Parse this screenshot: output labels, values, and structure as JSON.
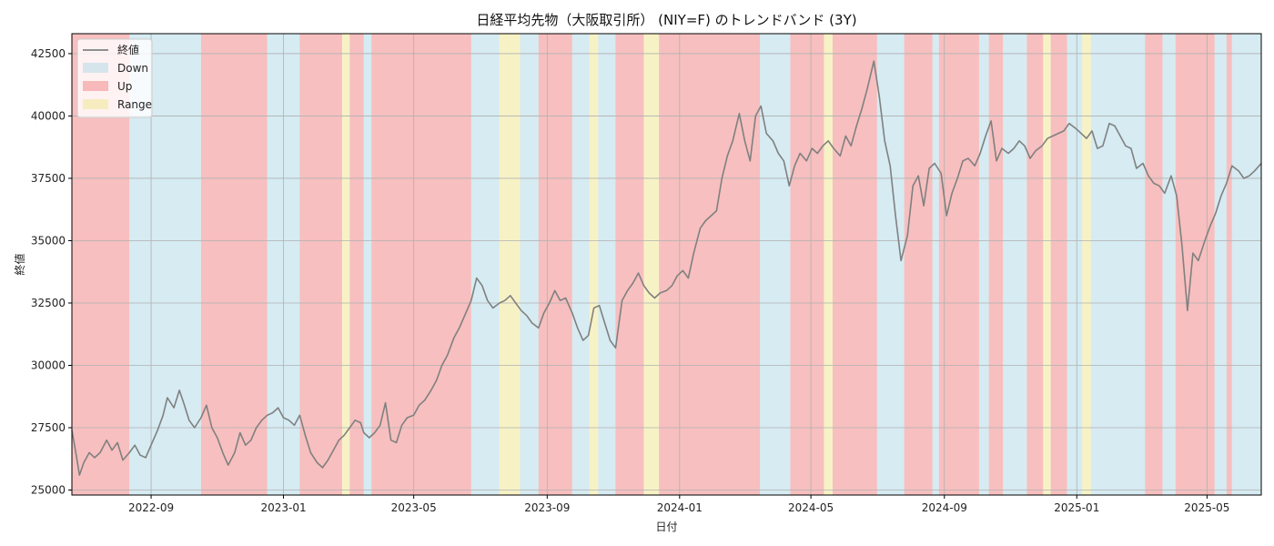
{
  "chart_data": {
    "type": "line",
    "title": "日経平均先物（大阪取引所） (NIY=F) のトレンドバンド (3Y)",
    "xlabel": "日付",
    "ylabel": "終値",
    "x_tick_labels": [
      "2022-09",
      "2023-01",
      "2023-05",
      "2023-09",
      "2024-01",
      "2024-05",
      "2024-09",
      "2025-01",
      "2025-05"
    ],
    "x_ticks": [
      "2022-09-01",
      "2023-01-01",
      "2023-05-01",
      "2023-09-01",
      "2024-01-01",
      "2024-05-01",
      "2024-09-01",
      "2025-01-01",
      "2025-05-01"
    ],
    "xlim": [
      "2022-06-20",
      "2025-06-20"
    ],
    "y_ticks": [
      25000,
      27500,
      30000,
      32500,
      35000,
      37500,
      40000,
      42500
    ],
    "y_tick_labels": [
      "25000",
      "27500",
      "30000",
      "32500",
      "35000",
      "37500",
      "40000",
      "42500"
    ],
    "ylim": [
      24800,
      43300
    ],
    "grid": true,
    "legend_position": "top-left",
    "colors": {
      "line": "#808080",
      "Down": "#add8e6",
      "Up": "#f08080",
      "Range": "#f0e68c"
    },
    "legend": [
      {
        "label": "終値",
        "kind": "line",
        "color": "#808080"
      },
      {
        "label": "Down",
        "kind": "band",
        "color": "#add8e6"
      },
      {
        "label": "Up",
        "kind": "band",
        "color": "#f08080"
      },
      {
        "label": "Range",
        "kind": "band",
        "color": "#f0e68c"
      }
    ],
    "bands": [
      {
        "start": "2022-06-20",
        "end": "2022-08-12",
        "trend": "Up"
      },
      {
        "start": "2022-08-12",
        "end": "2022-10-17",
        "trend": "Down"
      },
      {
        "start": "2022-10-17",
        "end": "2022-12-17",
        "trend": "Up"
      },
      {
        "start": "2022-12-17",
        "end": "2023-01-16",
        "trend": "Down"
      },
      {
        "start": "2023-01-16",
        "end": "2023-02-24",
        "trend": "Up"
      },
      {
        "start": "2023-02-24",
        "end": "2023-03-03",
        "trend": "Range"
      },
      {
        "start": "2023-03-03",
        "end": "2023-03-16",
        "trend": "Up"
      },
      {
        "start": "2023-03-16",
        "end": "2023-03-23",
        "trend": "Down"
      },
      {
        "start": "2023-03-23",
        "end": "2023-06-23",
        "trend": "Up"
      },
      {
        "start": "2023-06-23",
        "end": "2023-07-19",
        "trend": "Down"
      },
      {
        "start": "2023-07-19",
        "end": "2023-08-07",
        "trend": "Range"
      },
      {
        "start": "2023-08-07",
        "end": "2023-08-24",
        "trend": "Down"
      },
      {
        "start": "2023-08-24",
        "end": "2023-09-24",
        "trend": "Up"
      },
      {
        "start": "2023-09-24",
        "end": "2023-10-10",
        "trend": "Down"
      },
      {
        "start": "2023-10-10",
        "end": "2023-10-18",
        "trend": "Range"
      },
      {
        "start": "2023-10-18",
        "end": "2023-11-03",
        "trend": "Down"
      },
      {
        "start": "2023-11-03",
        "end": "2023-11-29",
        "trend": "Up"
      },
      {
        "start": "2023-11-29",
        "end": "2023-12-13",
        "trend": "Range"
      },
      {
        "start": "2023-12-13",
        "end": "2024-03-15",
        "trend": "Up"
      },
      {
        "start": "2024-03-15",
        "end": "2024-04-12",
        "trend": "Down"
      },
      {
        "start": "2024-04-12",
        "end": "2024-05-13",
        "trend": "Up"
      },
      {
        "start": "2024-05-13",
        "end": "2024-05-21",
        "trend": "Range"
      },
      {
        "start": "2024-05-21",
        "end": "2024-07-01",
        "trend": "Up"
      },
      {
        "start": "2024-07-01",
        "end": "2024-07-26",
        "trend": "Down"
      },
      {
        "start": "2024-07-26",
        "end": "2024-08-21",
        "trend": "Up"
      },
      {
        "start": "2024-08-21",
        "end": "2024-08-27",
        "trend": "Down"
      },
      {
        "start": "2024-08-27",
        "end": "2024-10-03",
        "trend": "Up"
      },
      {
        "start": "2024-10-03",
        "end": "2024-10-12",
        "trend": "Down"
      },
      {
        "start": "2024-10-12",
        "end": "2024-10-25",
        "trend": "Up"
      },
      {
        "start": "2024-10-25",
        "end": "2024-11-16",
        "trend": "Down"
      },
      {
        "start": "2024-11-16",
        "end": "2024-12-01",
        "trend": "Up"
      },
      {
        "start": "2024-12-01",
        "end": "2024-12-08",
        "trend": "Range"
      },
      {
        "start": "2024-12-08",
        "end": "2024-12-23",
        "trend": "Up"
      },
      {
        "start": "2024-12-23",
        "end": "2025-01-06",
        "trend": "Down"
      },
      {
        "start": "2025-01-06",
        "end": "2025-01-14",
        "trend": "Range"
      },
      {
        "start": "2025-01-14",
        "end": "2025-03-05",
        "trend": "Down"
      },
      {
        "start": "2025-03-05",
        "end": "2025-03-21",
        "trend": "Up"
      },
      {
        "start": "2025-03-21",
        "end": "2025-04-02",
        "trend": "Down"
      },
      {
        "start": "2025-04-02",
        "end": "2025-05-08",
        "trend": "Up"
      },
      {
        "start": "2025-05-08",
        "end": "2025-05-19",
        "trend": "Down"
      },
      {
        "start": "2025-05-19",
        "end": "2025-05-24",
        "trend": "Up"
      },
      {
        "start": "2025-05-24",
        "end": "2025-06-20",
        "trend": "Down"
      }
    ],
    "series": [
      {
        "name": "終値",
        "x": [
          "2022-06-20",
          "2022-06-24",
          "2022-06-27",
          "2022-07-01",
          "2022-07-06",
          "2022-07-11",
          "2022-07-16",
          "2022-07-22",
          "2022-07-27",
          "2022-08-01",
          "2022-08-06",
          "2022-08-12",
          "2022-08-17",
          "2022-08-22",
          "2022-08-27",
          "2022-09-02",
          "2022-09-07",
          "2022-09-12",
          "2022-09-16",
          "2022-09-22",
          "2022-09-27",
          "2022-10-01",
          "2022-10-06",
          "2022-10-11",
          "2022-10-17",
          "2022-10-22",
          "2022-10-27",
          "2022-11-01",
          "2022-11-06",
          "2022-11-11",
          "2022-11-17",
          "2022-11-22",
          "2022-11-27",
          "2022-12-02",
          "2022-12-07",
          "2022-12-12",
          "2022-12-17",
          "2022-12-22",
          "2022-12-27",
          "2023-01-01",
          "2023-01-06",
          "2023-01-11",
          "2023-01-16",
          "2023-01-21",
          "2023-01-26",
          "2023-02-01",
          "2023-02-06",
          "2023-02-11",
          "2023-02-16",
          "2023-02-21",
          "2023-02-26",
          "2023-03-03",
          "2023-03-08",
          "2023-03-13",
          "2023-03-16",
          "2023-03-21",
          "2023-03-26",
          "2023-03-31",
          "2023-04-05",
          "2023-04-10",
          "2023-04-15",
          "2023-04-20",
          "2023-04-25",
          "2023-05-01",
          "2023-05-06",
          "2023-05-11",
          "2023-05-17",
          "2023-05-22",
          "2023-05-27",
          "2023-06-01",
          "2023-06-07",
          "2023-06-12",
          "2023-06-17",
          "2023-06-23",
          "2023-06-28",
          "2023-07-03",
          "2023-07-08",
          "2023-07-13",
          "2023-07-19",
          "2023-07-24",
          "2023-07-29",
          "2023-08-03",
          "2023-08-08",
          "2023-08-13",
          "2023-08-18",
          "2023-08-24",
          "2023-08-29",
          "2023-09-03",
          "2023-09-08",
          "2023-09-13",
          "2023-09-18",
          "2023-09-24",
          "2023-09-29",
          "2023-10-04",
          "2023-10-09",
          "2023-10-14",
          "2023-10-19",
          "2023-10-24",
          "2023-10-29",
          "2023-11-03",
          "2023-11-09",
          "2023-11-14",
          "2023-11-19",
          "2023-11-24",
          "2023-11-29",
          "2023-12-04",
          "2023-12-09",
          "2023-12-14",
          "2023-12-20",
          "2023-12-25",
          "2023-12-30",
          "2024-01-04",
          "2024-01-09",
          "2024-01-14",
          "2024-01-20",
          "2024-01-25",
          "2024-01-30",
          "2024-02-04",
          "2024-02-09",
          "2024-02-14",
          "2024-02-19",
          "2024-02-25",
          "2024-03-01",
          "2024-03-06",
          "2024-03-11",
          "2024-03-16",
          "2024-03-21",
          "2024-03-27",
          "2024-04-01",
          "2024-04-06",
          "2024-04-11",
          "2024-04-16",
          "2024-04-21",
          "2024-04-27",
          "2024-05-02",
          "2024-05-07",
          "2024-05-12",
          "2024-05-17",
          "2024-05-22",
          "2024-05-28",
          "2024-06-02",
          "2024-06-07",
          "2024-06-12",
          "2024-06-17",
          "2024-06-22",
          "2024-06-28",
          "2024-07-03",
          "2024-07-08",
          "2024-07-13",
          "2024-07-18",
          "2024-07-23",
          "2024-07-29",
          "2024-08-03",
          "2024-08-08",
          "2024-08-13",
          "2024-08-18",
          "2024-08-23",
          "2024-08-29",
          "2024-09-03",
          "2024-09-08",
          "2024-09-13",
          "2024-09-18",
          "2024-09-23",
          "2024-09-29",
          "2024-10-04",
          "2024-10-09",
          "2024-10-14",
          "2024-10-19",
          "2024-10-24",
          "2024-10-30",
          "2024-11-04",
          "2024-11-09",
          "2024-11-14",
          "2024-11-19",
          "2024-11-24",
          "2024-11-30",
          "2024-12-05",
          "2024-12-10",
          "2024-12-15",
          "2024-12-20",
          "2024-12-25",
          "2024-12-31",
          "2025-01-05",
          "2025-01-10",
          "2025-01-15",
          "2025-01-20",
          "2025-01-25",
          "2025-01-31",
          "2025-02-05",
          "2025-02-10",
          "2025-02-15",
          "2025-02-20",
          "2025-02-25",
          "2025-03-03",
          "2025-03-08",
          "2025-03-13",
          "2025-03-18",
          "2025-03-23",
          "2025-03-29",
          "2025-04-03",
          "2025-04-08",
          "2025-04-13",
          "2025-04-18",
          "2025-04-23",
          "2025-04-29",
          "2025-05-04",
          "2025-05-09",
          "2025-05-14",
          "2025-05-19",
          "2025-05-24",
          "2025-05-30",
          "2025-06-04",
          "2025-06-09",
          "2025-06-14",
          "2025-06-20"
        ],
        "y": [
          27400,
          26400,
          25600,
          26100,
          26500,
          26300,
          26500,
          27000,
          26600,
          26900,
          26200,
          26500,
          26800,
          26400,
          26300,
          26900,
          27400,
          28000,
          28700,
          28300,
          29000,
          28500,
          27800,
          27500,
          27900,
          28400,
          27500,
          27100,
          26500,
          26000,
          26500,
          27300,
          26800,
          27000,
          27500,
          27800,
          28000,
          28100,
          28300,
          27900,
          27800,
          27600,
          28000,
          27200,
          26500,
          26100,
          25900,
          26200,
          26600,
          27000,
          27200,
          27500,
          27800,
          27700,
          27300,
          27100,
          27300,
          27600,
          28500,
          27000,
          26900,
          27600,
          27900,
          28000,
          28400,
          28600,
          29000,
          29400,
          30000,
          30400,
          31100,
          31500,
          32000,
          32600,
          33500,
          33200,
          32600,
          32300,
          32500,
          32600,
          32800,
          32500,
          32200,
          32000,
          31700,
          31500,
          32100,
          32500,
          33000,
          32600,
          32700,
          32100,
          31500,
          31000,
          31200,
          32300,
          32400,
          31700,
          31000,
          30700,
          32600,
          33000,
          33300,
          33700,
          33200,
          32900,
          32700,
          32900,
          33000,
          33200,
          33600,
          33800,
          33500,
          34500,
          35500,
          35800,
          36000,
          36200,
          37500,
          38400,
          39000,
          40100,
          39000,
          38200,
          40000,
          40400,
          39300,
          39000,
          38500,
          38200,
          37200,
          38000,
          38500,
          38200,
          38700,
          38500,
          38800,
          39000,
          38700,
          38400,
          39200,
          38800,
          39600,
          40300,
          41100,
          42200,
          40800,
          39000,
          38000,
          36000,
          34200,
          35200,
          37200,
          37600,
          36400,
          37900,
          38100,
          37700,
          36000,
          36900,
          37500,
          38200,
          38300,
          38000,
          38500,
          39200,
          39800,
          38200,
          38700,
          38500,
          38700,
          39000,
          38800,
          38300,
          38600,
          38800,
          39100,
          39200,
          39300,
          39400,
          39700,
          39500,
          39300,
          39100,
          39400,
          38700,
          38800,
          39700,
          39600,
          39200,
          38800,
          38700,
          37900,
          38100,
          37600,
          37300,
          37200,
          36900,
          37600,
          36800,
          34800,
          32200,
          34500,
          34200,
          35000,
          35600,
          36100,
          36800,
          37300,
          38000,
          37800,
          37500,
          37600,
          37800,
          38100
        ]
      }
    ]
  }
}
